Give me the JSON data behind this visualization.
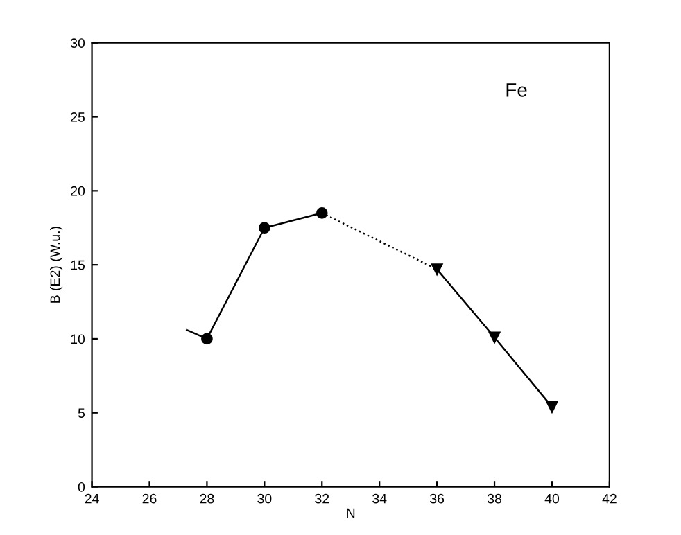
{
  "chart_data": {
    "type": "line",
    "xlabel": "N",
    "ylabel": "B (E2) (W.u.)",
    "annotations": [
      "Fe"
    ],
    "series": [
      {
        "color": "#000000",
        "x": [
          27.3,
          28
        ],
        "values": [
          10.6,
          10.0
        ],
        "line_style": "solid"
      },
      {
        "color": "#000000",
        "x": [
          28,
          30,
          32
        ],
        "values": [
          10.0,
          17.5,
          18.5
        ],
        "marker": "circle",
        "line_style": "solid"
      },
      {
        "color": "#000000",
        "x": [
          32,
          36
        ],
        "values": [
          18.5,
          14.7
        ],
        "line_style": "dotted"
      },
      {
        "color": "#000000",
        "x": [
          36,
          38,
          40
        ],
        "values": [
          14.7,
          10.1,
          5.4
        ],
        "marker": "triangle",
        "line_style": "solid"
      }
    ],
    "xlim": [
      24,
      42
    ],
    "xticks": [
      24,
      26,
      28,
      30,
      32,
      34,
      36,
      38,
      40,
      42
    ],
    "ylim": [
      0,
      30
    ],
    "yticks": [
      0,
      5,
      10,
      15,
      20,
      25,
      30
    ],
    "grid": false,
    "legend": false
  }
}
